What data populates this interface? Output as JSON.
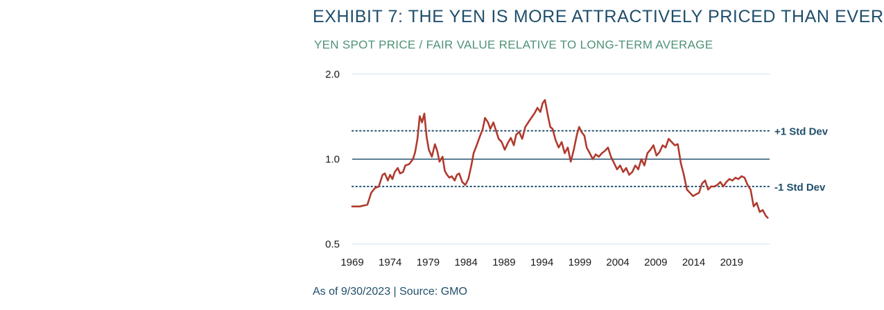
{
  "header": {
    "title": "EXHIBIT 7: THE YEN IS MORE ATTRACTIVELY PRICED THAN EVER",
    "subtitle": "YEN SPOT PRICE / FAIR VALUE RELATIVE TO LONG-TERM AVERAGE"
  },
  "footer": {
    "source": "As of 9/30/2023 | Source: GMO"
  },
  "colors": {
    "line": "#b03a2e",
    "reference": "#1f4e6b",
    "grid": "#d4e2ea",
    "title": "#1f4e6b",
    "subtitle": "#4f9278"
  },
  "chart_data": {
    "type": "line",
    "title": "EXHIBIT 7: THE YEN IS MORE ATTRACTIVELY PRICED THAN EVER",
    "subtitle": "YEN SPOT PRICE / FAIR VALUE RELATIVE TO LONG-TERM AVERAGE",
    "xlabel": "",
    "ylabel": "",
    "y_scale": "log",
    "ylim": [
      0.5,
      2.0
    ],
    "xlim": [
      1969,
      2024
    ],
    "y_ticks": [
      "2.0",
      "1.0",
      "0.5"
    ],
    "y_tick_values": [
      2.0,
      1.0,
      0.5
    ],
    "x_ticks": [
      "1969",
      "1974",
      "1979",
      "1984",
      "1989",
      "1994",
      "1999",
      "2004",
      "2009",
      "2014",
      "2019"
    ],
    "x_tick_values": [
      1969,
      1974,
      1979,
      1984,
      1989,
      1994,
      1999,
      2004,
      2009,
      2014,
      2019
    ],
    "grid": "horizontal",
    "reference_lines": [
      {
        "label": "+1 Std Dev",
        "value": 1.26,
        "style": "dotted"
      },
      {
        "label": "",
        "value": 1.0,
        "style": "solid"
      },
      {
        "label": "-1 Std Dev",
        "value": 0.8,
        "style": "dotted"
      }
    ],
    "series": [
      {
        "x": [
          1969.0,
          1970.0,
          1971.0,
          1971.5,
          1972.0,
          1972.5,
          1973.0,
          1973.3,
          1973.7,
          1974.0,
          1974.3,
          1974.6,
          1975.0,
          1975.3,
          1975.7,
          1976.0,
          1976.5,
          1977.0,
          1977.3,
          1977.6,
          1977.9,
          1978.2,
          1978.5,
          1978.8,
          1979.1,
          1979.5,
          1979.9,
          1980.2,
          1980.5,
          1980.9,
          1981.2,
          1981.5,
          1981.8,
          1982.1,
          1982.5,
          1982.8,
          1983.1,
          1983.5,
          1983.9,
          1984.3,
          1984.7,
          1985.0,
          1985.4,
          1985.8,
          1986.2,
          1986.5,
          1986.9,
          1987.2,
          1987.6,
          1988.0,
          1988.3,
          1988.7,
          1989.1,
          1989.5,
          1989.9,
          1990.3,
          1990.6,
          1991.0,
          1991.4,
          1991.8,
          1992.2,
          1992.6,
          1993.0,
          1993.4,
          1993.8,
          1994.1,
          1994.4,
          1994.8,
          1995.1,
          1995.4,
          1995.8,
          1996.2,
          1996.6,
          1997.0,
          1997.4,
          1997.8,
          1998.2,
          1998.6,
          1998.9,
          1999.2,
          1999.6,
          1999.9,
          2000.3,
          2000.7,
          2001.1,
          2001.5,
          2001.9,
          2002.3,
          2002.7,
          2003.1,
          2003.5,
          2003.9,
          2004.3,
          2004.7,
          2005.1,
          2005.5,
          2005.9,
          2006.3,
          2006.7,
          2007.1,
          2007.5,
          2007.9,
          2008.3,
          2008.7,
          2009.1,
          2009.5,
          2009.9,
          2010.3,
          2010.7,
          2011.1,
          2011.5,
          2011.9,
          2012.3,
          2012.7,
          2013.1,
          2013.5,
          2013.9,
          2014.3,
          2014.7,
          2015.1,
          2015.5,
          2015.9,
          2016.3,
          2016.7,
          2017.1,
          2017.5,
          2017.9,
          2018.3,
          2018.7,
          2019.1,
          2019.5,
          2019.9,
          2020.3,
          2020.7,
          2021.1,
          2021.5,
          2021.9,
          2022.3,
          2022.7,
          2023.1,
          2023.5,
          2023.75
        ],
        "values": [
          0.68,
          0.68,
          0.69,
          0.76,
          0.79,
          0.8,
          0.88,
          0.89,
          0.84,
          0.88,
          0.85,
          0.9,
          0.93,
          0.89,
          0.9,
          0.95,
          0.96,
          1.0,
          1.06,
          1.18,
          1.42,
          1.35,
          1.45,
          1.2,
          1.08,
          1.02,
          1.13,
          1.07,
          0.98,
          1.02,
          0.91,
          0.88,
          0.86,
          0.87,
          0.84,
          0.88,
          0.89,
          0.83,
          0.81,
          0.85,
          0.95,
          1.05,
          1.12,
          1.2,
          1.28,
          1.4,
          1.35,
          1.28,
          1.35,
          1.25,
          1.18,
          1.15,
          1.08,
          1.14,
          1.19,
          1.12,
          1.22,
          1.25,
          1.18,
          1.3,
          1.35,
          1.4,
          1.45,
          1.52,
          1.47,
          1.58,
          1.62,
          1.42,
          1.3,
          1.28,
          1.17,
          1.1,
          1.15,
          1.05,
          1.1,
          0.98,
          1.08,
          1.22,
          1.3,
          1.25,
          1.21,
          1.1,
          1.05,
          1.0,
          1.04,
          1.02,
          1.05,
          1.07,
          1.1,
          1.02,
          0.97,
          0.92,
          0.95,
          0.9,
          0.93,
          0.88,
          0.9,
          0.95,
          0.92,
          1.0,
          0.95,
          1.05,
          1.08,
          1.12,
          1.03,
          1.06,
          1.12,
          1.1,
          1.18,
          1.15,
          1.12,
          1.13,
          0.97,
          0.88,
          0.78,
          0.76,
          0.74,
          0.75,
          0.76,
          0.82,
          0.84,
          0.78,
          0.8,
          0.8,
          0.81,
          0.83,
          0.8,
          0.83,
          0.85,
          0.84,
          0.86,
          0.85,
          0.87,
          0.86,
          0.81,
          0.78,
          0.68,
          0.7,
          0.65,
          0.66,
          0.63,
          0.62
        ]
      }
    ]
  }
}
